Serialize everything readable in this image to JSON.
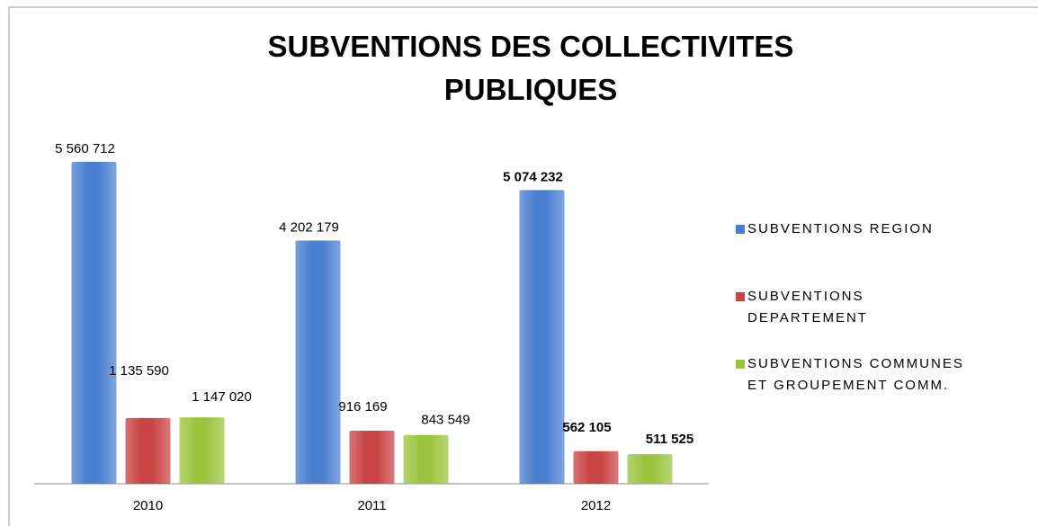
{
  "chart_data": {
    "type": "bar",
    "title": "SUBVENTIONS DES COLLECTIVITES PUBLIQUES",
    "categories": [
      "2010",
      "2011",
      "2012"
    ],
    "series": [
      {
        "name": "SUBVENTIONS REGION",
        "color": "#4a7fd0",
        "values": [
          5560712,
          4202179,
          5074232
        ],
        "value_labels": [
          "5 560 712",
          "4 202 179",
          "5 074 232"
        ]
      },
      {
        "name": "SUBVENTIONS DEPARTEMENT",
        "color": "#c94444",
        "values": [
          1135590,
          916169,
          562105
        ],
        "value_labels": [
          "1 135 590",
          "916 169",
          "562 105"
        ]
      },
      {
        "name": "SUBVENTIONS COMMUNES ET GROUPEMENT COMM.",
        "color": "#9cc43e",
        "values": [
          1147020,
          843549,
          511525
        ],
        "value_labels": [
          "1 147 020",
          "843 549",
          "511 525"
        ]
      }
    ],
    "legend": "right"
  }
}
